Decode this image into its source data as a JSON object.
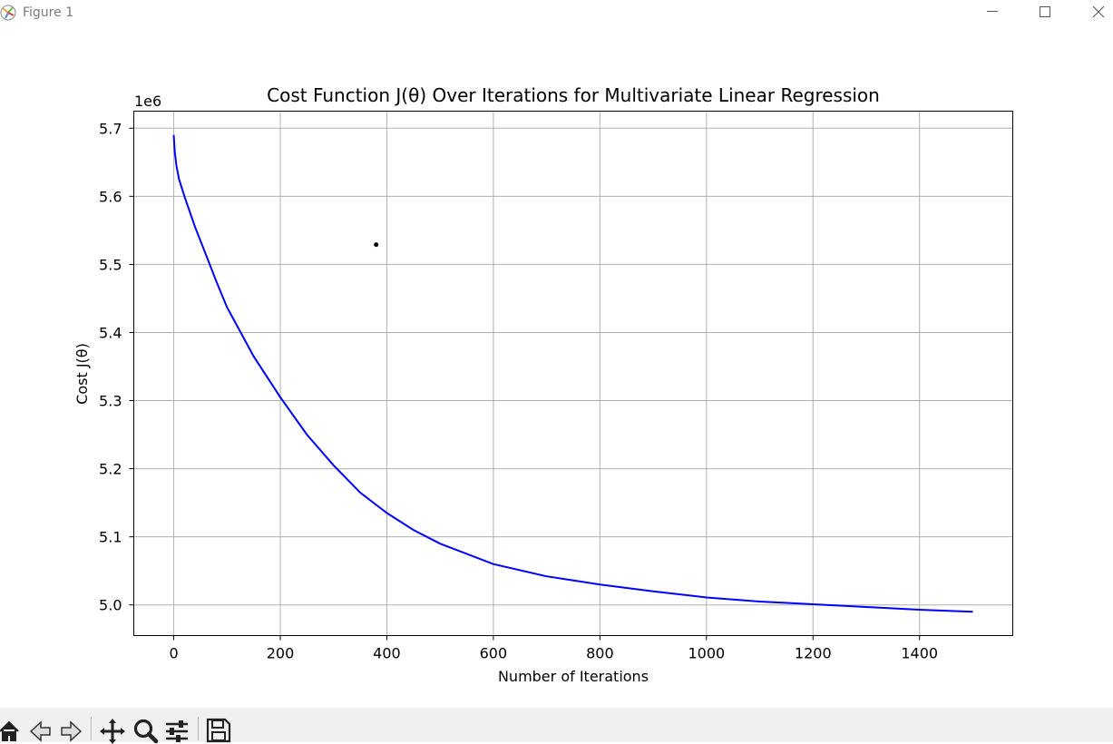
{
  "window": {
    "title": "Figure 1"
  },
  "toolbar": {
    "buttons": [
      "home-icon",
      "back-icon",
      "forward-icon",
      "pan-icon",
      "zoom-icon",
      "configure-subplots-icon",
      "save-icon"
    ]
  },
  "chart_data": {
    "type": "line",
    "title": "Cost Function J(θ) Over Iterations for Multivariate Linear Regression",
    "xlabel": "Number of Iterations",
    "ylabel": "Cost J(θ)",
    "y_offset_label": "1e6",
    "xlim": [
      -75,
      1575
    ],
    "ylim": [
      4.955,
      5.725
    ],
    "xticks": [
      0,
      200,
      400,
      600,
      800,
      1000,
      1200,
      1400
    ],
    "yticks": [
      5.0,
      5.1,
      5.2,
      5.3,
      5.4,
      5.5,
      5.6,
      5.7
    ],
    "ytick_labels": [
      "5.0",
      "5.1",
      "5.2",
      "5.3",
      "5.4",
      "5.5",
      "5.6",
      "5.7"
    ],
    "grid": true,
    "series": [
      {
        "color": "#0000ff",
        "x": [
          0,
          2,
          5,
          10,
          20,
          40,
          60,
          80,
          100,
          150,
          200,
          250,
          300,
          350,
          400,
          450,
          500,
          600,
          700,
          800,
          900,
          1000,
          1100,
          1200,
          1300,
          1400,
          1500
        ],
        "y": [
          5.69,
          5.665,
          5.645,
          5.625,
          5.6,
          5.555,
          5.515,
          5.475,
          5.437,
          5.365,
          5.305,
          5.25,
          5.205,
          5.165,
          5.135,
          5.11,
          5.09,
          5.06,
          5.042,
          5.03,
          5.02,
          5.011,
          5.005,
          5.001,
          4.997,
          4.993,
          4.99
        ]
      }
    ],
    "stray_point": {
      "x": 380,
      "y": 5.529,
      "color": "#000000"
    }
  }
}
